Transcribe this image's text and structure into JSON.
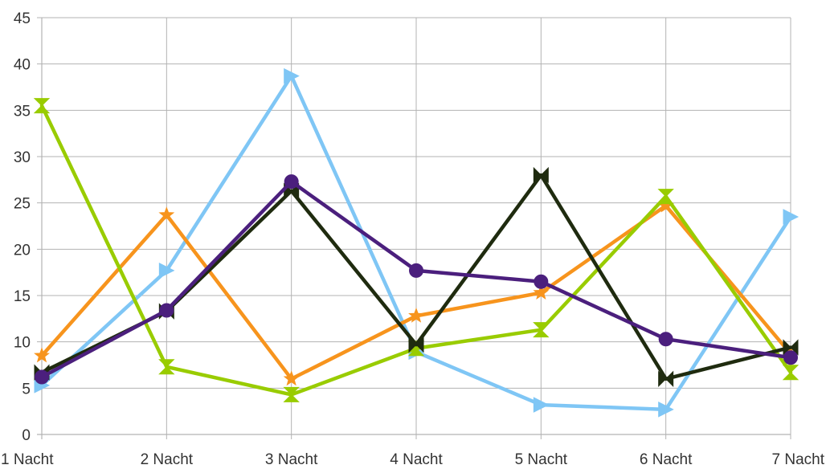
{
  "chart_data": {
    "type": "line",
    "categories": [
      "1 Nacht",
      "2 Nacht",
      "3 Nacht",
      "4 Nacht",
      "5 Nacht",
      "6 Nacht",
      "7 Nacht"
    ],
    "ylim": [
      0,
      45
    ],
    "yticks": [
      0,
      5,
      10,
      15,
      20,
      25,
      30,
      35,
      40,
      45
    ],
    "grid": true,
    "legend": "none",
    "series": [
      {
        "color": "#7fc6f5",
        "marker": "triangle-right",
        "values": [
          5.3,
          17.7,
          38.7,
          8.9,
          3.2,
          2.7,
          23.5
        ]
      },
      {
        "color": "#f7941d",
        "marker": "star",
        "values": [
          8.5,
          23.7,
          6.0,
          12.8,
          15.3,
          24.7,
          8.7
        ]
      },
      {
        "color": "#99cc00",
        "marker": "hourglass",
        "values": [
          35.5,
          7.3,
          4.3,
          9.3,
          11.3,
          25.7,
          6.7
        ]
      },
      {
        "color": "#1f2b0f",
        "marker": "bowtie",
        "values": [
          6.7,
          13.3,
          26.3,
          9.7,
          28.0,
          6.0,
          9.4
        ]
      },
      {
        "color": "#4b1f7d",
        "marker": "circle",
        "values": [
          6.2,
          13.4,
          27.3,
          17.7,
          16.5,
          10.3,
          8.3
        ]
      }
    ]
  }
}
